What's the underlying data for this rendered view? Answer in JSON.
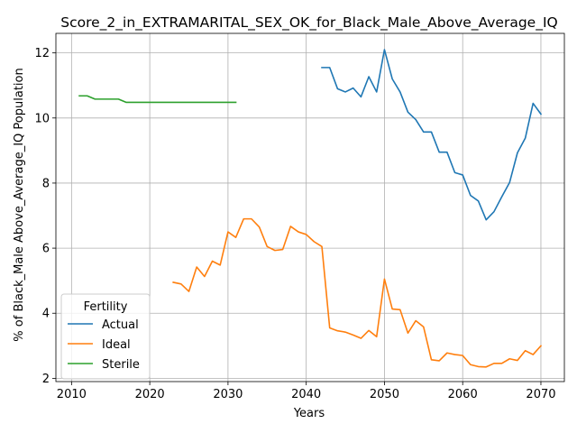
{
  "chart_data": {
    "type": "line",
    "title": "Score_2_in_EXTRAMARITAL_SEX_OK_for_Black_Male_Above_Average_IQ",
    "xlabel": "Years",
    "ylabel": "% of Black_Male Above_Average_IQ Population",
    "xlim": [
      2008,
      2073
    ],
    "ylim": [
      1.9,
      12.6
    ],
    "xticks": [
      2010,
      2020,
      2030,
      2040,
      2050,
      2060,
      2070
    ],
    "yticks": [
      2,
      4,
      6,
      8,
      10,
      12
    ],
    "grid": true,
    "legend": {
      "title": "Fertility",
      "placement": "lower-left"
    },
    "series": [
      {
        "name": "Actual",
        "color": "#1f77b4",
        "x": [
          2042,
          2043,
          2044,
          2045,
          2046,
          2047,
          2048,
          2049,
          2050,
          2051,
          2052,
          2053,
          2054,
          2055,
          2056,
          2057,
          2058,
          2059,
          2060,
          2061,
          2062,
          2063,
          2064,
          2065,
          2066,
          2067,
          2068,
          2069,
          2070
        ],
        "y": [
          11.55,
          11.55,
          10.9,
          10.8,
          10.92,
          10.65,
          11.27,
          10.8,
          12.1,
          11.2,
          10.8,
          10.18,
          9.95,
          9.57,
          9.57,
          8.95,
          8.95,
          8.32,
          8.25,
          7.62,
          7.45,
          6.87,
          7.12,
          7.58,
          8.02,
          8.93,
          9.38,
          10.45,
          10.12
        ]
      },
      {
        "name": "Ideal",
        "color": "#ff7f0e",
        "x": [
          2023,
          2024,
          2025,
          2026,
          2027,
          2028,
          2029,
          2030,
          2031,
          2032,
          2033,
          2034,
          2035,
          2036,
          2037,
          2038,
          2039,
          2040,
          2041,
          2042,
          2043,
          2044,
          2045,
          2046,
          2047,
          2048,
          2049,
          2050,
          2051,
          2052,
          2053,
          2054,
          2055,
          2056,
          2057,
          2058,
          2059,
          2060,
          2061,
          2062,
          2063,
          2064,
          2065,
          2066,
          2067,
          2068,
          2069,
          2070
        ],
        "y": [
          4.95,
          4.9,
          4.67,
          5.42,
          5.13,
          5.6,
          5.48,
          6.5,
          6.33,
          6.9,
          6.9,
          6.65,
          6.05,
          5.93,
          5.96,
          6.67,
          6.5,
          6.42,
          6.2,
          6.05,
          3.55,
          3.46,
          3.42,
          3.33,
          3.23,
          3.47,
          3.28,
          5.05,
          4.13,
          4.11,
          3.39,
          3.77,
          3.58,
          2.57,
          2.54,
          2.78,
          2.73,
          2.7,
          2.42,
          2.36,
          2.35,
          2.46,
          2.46,
          2.6,
          2.55,
          2.85,
          2.73,
          3.0
        ]
      },
      {
        "name": "Sterile",
        "color": "#2ca02c",
        "x": [
          2011,
          2012,
          2013,
          2014,
          2015,
          2016,
          2017,
          2018,
          2019,
          2020,
          2021,
          2022,
          2023,
          2024,
          2025,
          2026,
          2027,
          2028,
          2029,
          2030,
          2031
        ],
        "y": [
          10.68,
          10.68,
          10.58,
          10.58,
          10.58,
          10.58,
          10.48,
          10.48,
          10.48,
          10.48,
          10.48,
          10.48,
          10.48,
          10.48,
          10.48,
          10.48,
          10.48,
          10.48,
          10.48,
          10.48,
          10.48
        ]
      }
    ]
  }
}
